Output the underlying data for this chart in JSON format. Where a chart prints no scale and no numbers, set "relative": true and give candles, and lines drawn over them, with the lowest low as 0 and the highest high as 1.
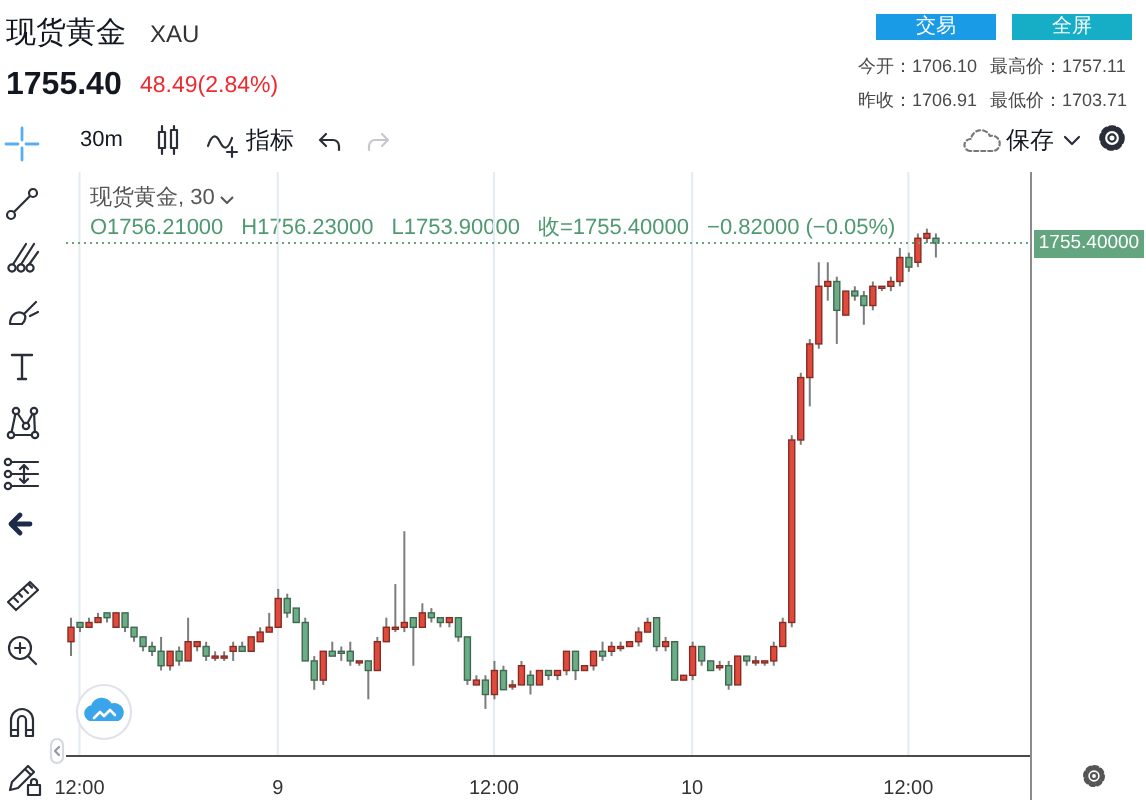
{
  "chart_data": {
    "type": "candlestick",
    "title": "现货黄金",
    "subtitle": "XAU",
    "categories": [
      null,
      "12:00",
      null,
      null,
      null,
      null,
      null,
      null,
      null,
      null,
      null,
      null,
      null,
      null,
      null,
      null,
      null,
      null,
      null,
      null,
      null,
      null,
      null,
      "9",
      null,
      null,
      null,
      null,
      null,
      null,
      null,
      null,
      null,
      null,
      null,
      null,
      null,
      null,
      null,
      null,
      null,
      null,
      null,
      null,
      null,
      null,
      null,
      "12:00",
      null,
      null,
      null,
      null,
      null,
      null,
      null,
      null,
      null,
      null,
      null,
      null,
      null,
      null,
      null,
      null,
      null,
      null,
      null,
      null,
      null,
      "10",
      null,
      null,
      null,
      null,
      null,
      null,
      null,
      null,
      null,
      null,
      null,
      null,
      null,
      null,
      null,
      null,
      null,
      null,
      null,
      null,
      null,
      null,
      null,
      "12:00",
      null,
      null,
      null,
      null,
      null,
      null,
      null,
      null,
      null,
      null,
      null,
      null,
      null
    ],
    "ohlc": [
      [
        0.14,
        0.19,
        0.11,
        0.17
      ],
      [
        0.18,
        0.18,
        0.16,
        0.17
      ],
      [
        0.17,
        0.19,
        0.17,
        0.18
      ],
      [
        0.18,
        0.2,
        0.18,
        0.19
      ],
      [
        0.2,
        0.2,
        0.18,
        0.19
      ],
      [
        0.17,
        0.2,
        0.17,
        0.2
      ],
      [
        0.2,
        0.2,
        0.16,
        0.17
      ],
      [
        0.17,
        0.17,
        0.14,
        0.15
      ],
      [
        0.15,
        0.15,
        0.12,
        0.13
      ],
      [
        0.13,
        0.14,
        0.11,
        0.12
      ],
      [
        0.12,
        0.15,
        0.08,
        0.09
      ],
      [
        0.09,
        0.12,
        0.08,
        0.12
      ],
      [
        0.12,
        0.13,
        0.09,
        0.1
      ],
      [
        0.1,
        0.19,
        0.1,
        0.14
      ],
      [
        0.13,
        0.14,
        0.12,
        0.14
      ],
      [
        0.13,
        0.14,
        0.1,
        0.11
      ],
      [
        0.11,
        0.12,
        0.1,
        0.11
      ],
      [
        0.11,
        0.12,
        0.1,
        0.11
      ],
      [
        0.12,
        0.14,
        0.1,
        0.13
      ],
      [
        0.13,
        0.14,
        0.12,
        0.12
      ],
      [
        0.12,
        0.15,
        0.12,
        0.15
      ],
      [
        0.14,
        0.17,
        0.14,
        0.16
      ],
      [
        0.16,
        0.2,
        0.16,
        0.17
      ],
      [
        0.17,
        0.25,
        0.17,
        0.23
      ],
      [
        0.23,
        0.24,
        0.19,
        0.2
      ],
      [
        0.21,
        0.21,
        0.18,
        0.18
      ],
      [
        0.18,
        0.19,
        0.1,
        0.1
      ],
      [
        0.1,
        0.11,
        0.04,
        0.06
      ],
      [
        0.06,
        0.12,
        0.05,
        0.12
      ],
      [
        0.12,
        0.14,
        0.11,
        0.11
      ],
      [
        0.12,
        0.13,
        0.1,
        0.12
      ],
      [
        0.12,
        0.14,
        0.09,
        0.1
      ],
      [
        0.1,
        0.1,
        0.09,
        0.1
      ],
      [
        0.1,
        0.1,
        0.02,
        0.08
      ],
      [
        0.08,
        0.15,
        0.08,
        0.14
      ],
      [
        0.14,
        0.19,
        0.14,
        0.17
      ],
      [
        0.17,
        0.26,
        0.16,
        0.17
      ],
      [
        0.17,
        0.37,
        0.16,
        0.18
      ],
      [
        0.19,
        0.19,
        0.09,
        0.17
      ],
      [
        0.17,
        0.22,
        0.17,
        0.2
      ],
      [
        0.2,
        0.21,
        0.18,
        0.19
      ],
      [
        0.19,
        0.19,
        0.17,
        0.18
      ],
      [
        0.18,
        0.19,
        0.17,
        0.19
      ],
      [
        0.19,
        0.19,
        0.14,
        0.15
      ],
      [
        0.15,
        0.15,
        0.05,
        0.06
      ],
      [
        0.05,
        0.07,
        0.05,
        0.06
      ],
      [
        0.06,
        0.07,
        0,
        0.03
      ],
      [
        0.03,
        0.1,
        0.02,
        0.08
      ],
      [
        0.08,
        0.09,
        0.04,
        0.04
      ],
      [
        0.05,
        0.06,
        0.04,
        0.05
      ],
      [
        0.05,
        0.1,
        0.05,
        0.09
      ],
      [
        0.07,
        0.08,
        0.03,
        0.05
      ],
      [
        0.05,
        0.08,
        0.05,
        0.08
      ],
      [
        0.08,
        0.08,
        0.06,
        0.07
      ],
      [
        0.07,
        0.08,
        0.06,
        0.08
      ],
      [
        0.08,
        0.12,
        0.07,
        0.12
      ],
      [
        0.12,
        0.12,
        0.06,
        0.08
      ],
      [
        0.08,
        0.09,
        0.08,
        0.09
      ],
      [
        0.09,
        0.12,
        0.08,
        0.12
      ],
      [
        0.12,
        0.14,
        0.1,
        0.11
      ],
      [
        0.12,
        0.14,
        0.11,
        0.13
      ],
      [
        0.13,
        0.14,
        0.12,
        0.13
      ],
      [
        0.13,
        0.14,
        0.13,
        0.14
      ],
      [
        0.14,
        0.17,
        0.13,
        0.16
      ],
      [
        0.16,
        0.19,
        0.16,
        0.18
      ],
      [
        0.19,
        0.19,
        0.12,
        0.13
      ],
      [
        0.13,
        0.15,
        0.12,
        0.14
      ],
      [
        0.14,
        0.14,
        0.06,
        0.06
      ],
      [
        0.06,
        0.07,
        0.06,
        0.07
      ],
      [
        0.07,
        0.14,
        0.06,
        0.13
      ],
      [
        0.13,
        0.13,
        0.09,
        0.1
      ],
      [
        0.1,
        0.1,
        0.08,
        0.08
      ],
      [
        0.09,
        0.1,
        0.08,
        0.09
      ],
      [
        0.09,
        0.1,
        0.04,
        0.05
      ],
      [
        0.05,
        0.11,
        0.05,
        0.11
      ],
      [
        0.11,
        0.11,
        0.09,
        0.1
      ],
      [
        0.1,
        0.11,
        0.09,
        0.1
      ],
      [
        0.1,
        0.1,
        0.09,
        0.1
      ],
      [
        0.1,
        0.14,
        0.09,
        0.13
      ],
      [
        0.13,
        0.19,
        0.13,
        0.18
      ],
      [
        0.18,
        0.57,
        0.17,
        0.56
      ],
      [
        0.56,
        0.7,
        0.55,
        0.69
      ],
      [
        0.69,
        0.77,
        0.63,
        0.76
      ],
      [
        0.76,
        0.93,
        0.75,
        0.88
      ],
      [
        0.88,
        0.93,
        0.85,
        0.89
      ],
      [
        0.89,
        0.9,
        0.76,
        0.83
      ],
      [
        0.82,
        0.87,
        0.82,
        0.87
      ],
      [
        0.87,
        0.88,
        0.85,
        0.86
      ],
      [
        0.86,
        0.87,
        0.8,
        0.84
      ],
      [
        0.84,
        0.89,
        0.83,
        0.88
      ],
      [
        0.88,
        0.88,
        0.87,
        0.88
      ],
      [
        0.88,
        0.9,
        0.87,
        0.89
      ],
      [
        0.89,
        0.96,
        0.88,
        0.94
      ],
      [
        0.94,
        0.95,
        0.91,
        0.92
      ],
      [
        0.93,
        0.99,
        0.92,
        0.98
      ],
      [
        0.98,
        1,
        0.97,
        0.99
      ],
      [
        0.98,
        0.99,
        0.94,
        0.97
      ],
      null,
      null,
      null,
      null,
      null,
      null,
      null,
      null,
      null,
      null
    ],
    "colors": [
      "#e04a3c",
      "#6aad86",
      "#e04a3c",
      "#e04a3c",
      "#6aad86",
      "#e04a3c",
      "#6aad86",
      "#6aad86",
      "#6aad86",
      "#6aad86",
      "#6aad86",
      "#e04a3c",
      "#6aad86",
      "#e04a3c",
      "#e04a3c",
      "#6aad86",
      "#e04a3c",
      "#e04a3c",
      "#e04a3c",
      "#6aad86",
      "#e04a3c",
      "#e04a3c",
      "#e04a3c",
      "#e04a3c",
      "#6aad86",
      "#6aad86",
      "#6aad86",
      "#6aad86",
      "#e04a3c",
      "#6aad86",
      "#6aad86",
      "#6aad86",
      "#e04a3c",
      "#6aad86",
      "#e04a3c",
      "#e04a3c",
      "#e04a3c",
      "#e04a3c",
      "#6aad86",
      "#e04a3c",
      "#6aad86",
      "#6aad86",
      "#e04a3c",
      "#6aad86",
      "#6aad86",
      "#e04a3c",
      "#6aad86",
      "#e04a3c",
      "#6aad86",
      "#e04a3c",
      "#e04a3c",
      "#6aad86",
      "#e04a3c",
      "#6aad86",
      "#e04a3c",
      "#e04a3c",
      "#6aad86",
      "#e04a3c",
      "#e04a3c",
      "#6aad86",
      "#e04a3c",
      "#e04a3c",
      "#e04a3c",
      "#e04a3c",
      "#e04a3c",
      "#6aad86",
      "#e04a3c",
      "#6aad86",
      "#e04a3c",
      "#e04a3c",
      "#6aad86",
      "#6aad86",
      "#e04a3c",
      "#6aad86",
      "#e04a3c",
      "#6aad86",
      "#e04a3c",
      "#e04a3c",
      "#e04a3c",
      "#e04a3c",
      "#e04a3c",
      "#e04a3c",
      "#e04a3c",
      "#e04a3c",
      "#e04a3c",
      "#6aad86",
      "#e04a3c",
      "#6aad86",
      "#6aad86",
      "#e04a3c",
      "#e04a3c",
      "#e04a3c",
      "#e04a3c",
      "#6aad86",
      "#e04a3c",
      "#e04a3c",
      "#6aad86",
      null,
      null,
      null,
      null,
      null,
      null,
      null,
      null,
      null,
      null
    ],
    "relative": true,
    "grid": "x",
    "ref_lines": [
      {
        "axis": "y",
        "value": 0.97,
        "color": "#62a57f",
        "line_style": "dotted"
      }
    ],
    "annotations": [
      "1755.40",
      "48.49(2.84%)",
      "今开：1706.10",
      "最高价：1757.11",
      "昨收：1706.91",
      "最低价：1703.71",
      "交易",
      "全屏",
      "30m",
      "指标",
      "保存",
      "现货黄金, 30",
      "O1756.21000",
      "H1756.23000",
      "L1753.90000",
      "收=1755.40000",
      "−0.82000 (−0.05%)",
      "1755.40000"
    ]
  }
}
